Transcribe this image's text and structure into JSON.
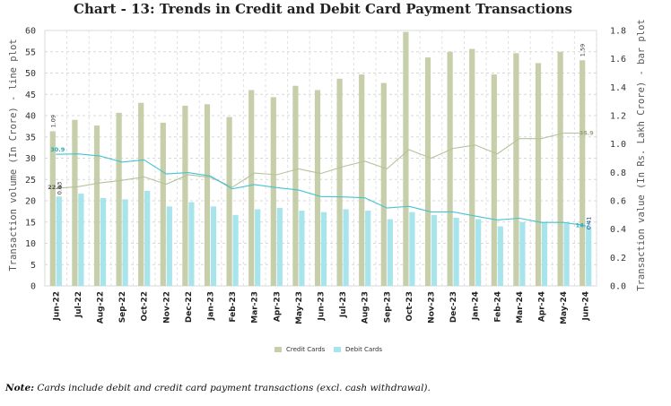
{
  "chart_data": {
    "type": "bar+line",
    "title": "Chart - 13: Trends in Credit and Debit Card Payment Transactions",
    "ylabel_left": "Transaction volume (In Crore) - line plot",
    "ylabel_right": "Transaction value (In Rs. Lakh Crore) - bar plot",
    "ylim_left": [
      0,
      60
    ],
    "yticks_left": [
      "0",
      "5",
      "10",
      "15",
      "20",
      "25",
      "30",
      "35",
      "40",
      "45",
      "50",
      "55",
      "60"
    ],
    "ylim_right": [
      0,
      1.8
    ],
    "yticks_right": [
      "0.0",
      "0.2",
      "0.4",
      "0.6",
      "0.8",
      "1.0",
      "1.2",
      "1.4",
      "1.6",
      "1.8"
    ],
    "grid": true,
    "legend_position": "bottom",
    "categories": [
      "Jun-22",
      "Jul-22",
      "Aug-22",
      "Sep-22",
      "Oct-22",
      "Nov-22",
      "Dec-22",
      "Jan-23",
      "Feb-23",
      "Mar-23",
      "Apr-23",
      "May-23",
      "Jun-23",
      "Jul-23",
      "Aug-23",
      "Sep-23",
      "Oct-23",
      "Nov-23",
      "Dec-23",
      "Jan-24",
      "Feb-24",
      "Mar-24",
      "Apr-24",
      "May-24",
      "Jun-24"
    ],
    "bar_series": [
      {
        "name": "Credit Cards",
        "color": "#c6ceaa",
        "values": [
          1.09,
          1.17,
          1.13,
          1.22,
          1.29,
          1.15,
          1.27,
          1.28,
          1.19,
          1.38,
          1.33,
          1.41,
          1.38,
          1.46,
          1.49,
          1.43,
          1.79,
          1.61,
          1.65,
          1.67,
          1.49,
          1.64,
          1.57,
          1.65,
          1.59
        ]
      },
      {
        "name": "Debit Cards",
        "color": "#a7e4eb",
        "values": [
          0.63,
          0.65,
          0.62,
          0.61,
          0.67,
          0.56,
          0.59,
          0.56,
          0.5,
          0.54,
          0.55,
          0.53,
          0.52,
          0.54,
          0.53,
          0.47,
          0.52,
          0.5,
          0.48,
          0.47,
          0.42,
          0.45,
          0.45,
          0.44,
          0.41
        ]
      }
    ],
    "line_series": [
      {
        "color": "#b6c29c",
        "values": [
          22.9,
          23.3,
          24.2,
          24.8,
          25.6,
          23.9,
          26.1,
          25.5,
          23.2,
          26.5,
          26.1,
          27.5,
          26.4,
          28.0,
          29.3,
          27.5,
          32.0,
          30.0,
          32.3,
          33.1,
          31.0,
          34.6,
          34.6,
          35.9,
          35.9
        ]
      },
      {
        "color": "#45c4d1",
        "values": [
          30.9,
          31.0,
          30.5,
          29.1,
          29.6,
          26.3,
          26.6,
          25.8,
          22.8,
          23.8,
          23.1,
          22.5,
          21.0,
          20.9,
          20.7,
          18.3,
          18.7,
          17.4,
          17.4,
          16.4,
          15.5,
          15.9,
          14.9,
          14.9,
          14.2
        ]
      }
    ],
    "data_labels": {
      "credit_bar_first": "1.09",
      "credit_bar_last": "1.59",
      "debit_bar_first": "0.63",
      "debit_bar_last": "0.41",
      "credit_line_first": "22.9",
      "credit_line_last": "35.9",
      "debit_line_first": "30.9",
      "debit_line_last": "14.2"
    }
  },
  "note": {
    "prefix": "Note:",
    "text": " Cards include debit and credit card payment transactions (excl. cash withdrawal)."
  }
}
